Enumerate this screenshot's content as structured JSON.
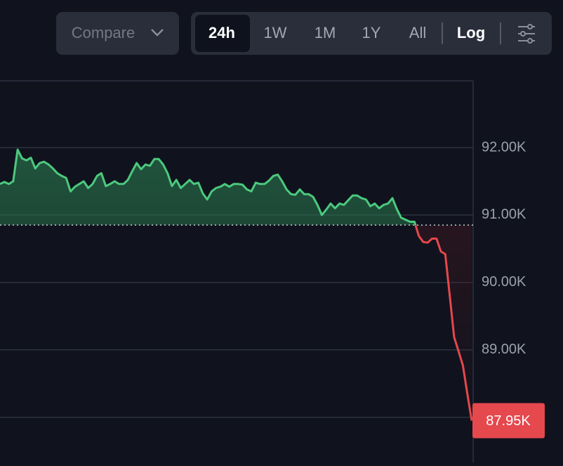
{
  "toolbar": {
    "compare": "Compare",
    "ranges": [
      "24h",
      "1W",
      "1M",
      "1Y",
      "All"
    ],
    "active_range": 0,
    "log": "Log"
  },
  "chart_data": {
    "type": "area",
    "values": [
      91460,
      91490,
      91460,
      91500,
      91970,
      91840,
      91810,
      91850,
      91690,
      91770,
      91790,
      91750,
      91690,
      91620,
      91580,
      91550,
      91350,
      91420,
      91460,
      91500,
      91400,
      91460,
      91580,
      91620,
      91430,
      91460,
      91500,
      91460,
      91460,
      91520,
      91650,
      91770,
      91680,
      91750,
      91730,
      91830,
      91830,
      91750,
      91620,
      91430,
      91520,
      91400,
      91460,
      91520,
      91460,
      91480,
      91320,
      91230,
      91350,
      91400,
      91420,
      91460,
      91420,
      91460,
      91460,
      91450,
      91380,
      91350,
      91480,
      91460,
      91460,
      91510,
      91580,
      91600,
      91500,
      91380,
      91310,
      91300,
      91380,
      91310,
      91310,
      91270,
      91150,
      91000,
      91080,
      91170,
      91100,
      91170,
      91150,
      91220,
      91290,
      91290,
      91250,
      91230,
      91130,
      91170,
      91100,
      91150,
      91170,
      91250,
      91090,
      90960,
      90930,
      90900,
      90900,
      90690,
      90600,
      90590,
      90650,
      90650,
      90460,
      90420,
      89810,
      89190,
      88980,
      88770,
      88350,
      87950
    ],
    "baseline": 90850,
    "up_color": "#4cc97e",
    "down_color": "#e5484d",
    "ylim": [
      87330,
      92990
    ],
    "yticks": [
      {
        "value": 92000,
        "label": "92.00K"
      },
      {
        "value": 91000,
        "label": "91.00K"
      },
      {
        "value": 90000,
        "label": "90.00K"
      },
      {
        "value": 89000,
        "label": "89.00K"
      },
      {
        "value": 88000,
        "label": null
      }
    ],
    "grid": true,
    "current_price": {
      "value": 87950,
      "label": "87.95K"
    }
  }
}
